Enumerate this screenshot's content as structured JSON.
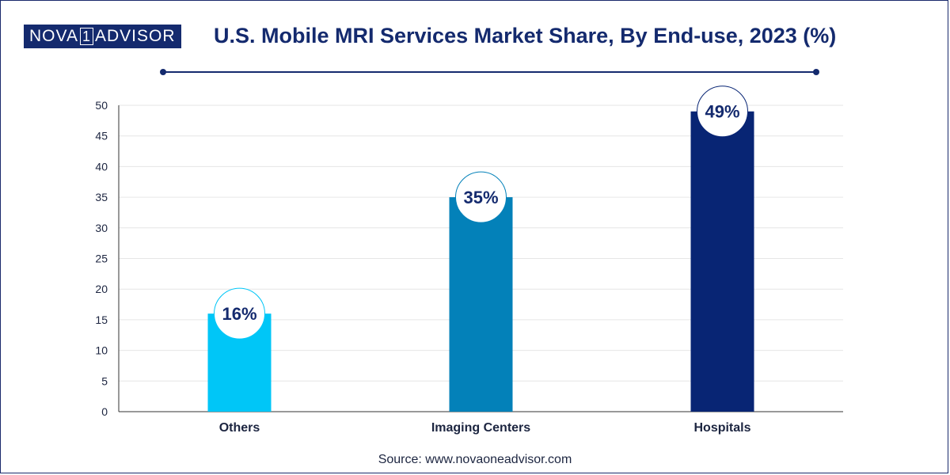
{
  "header": {
    "logo_left": "NOVA",
    "logo_mid": "1",
    "logo_right": "ADVISOR",
    "title": "U.S. Mobile MRI Services Market Share, By End-use, 2023 (%)"
  },
  "source": "Source: www.novaoneadvisor.com",
  "colors": {
    "navy": "#142a6e",
    "others": "#00c6f7",
    "imaging": "#0381b9",
    "hospitals": "#082574"
  },
  "chart_data": {
    "type": "bar",
    "title": "U.S. Mobile MRI Services Market Share, By End-use, 2023 (%)",
    "xlabel": "",
    "ylabel": "",
    "categories": [
      "Others",
      "Imaging Centers",
      "Hospitals"
    ],
    "values": [
      16,
      35,
      49
    ],
    "data_labels": [
      "16%",
      "35%",
      "49%"
    ],
    "bar_colors": [
      "#00c6f7",
      "#0381b9",
      "#082574"
    ],
    "ylim": [
      0,
      50
    ],
    "yticks": [
      0,
      5,
      10,
      15,
      20,
      25,
      30,
      35,
      40,
      45,
      50
    ],
    "grid": true,
    "legend": "none"
  }
}
